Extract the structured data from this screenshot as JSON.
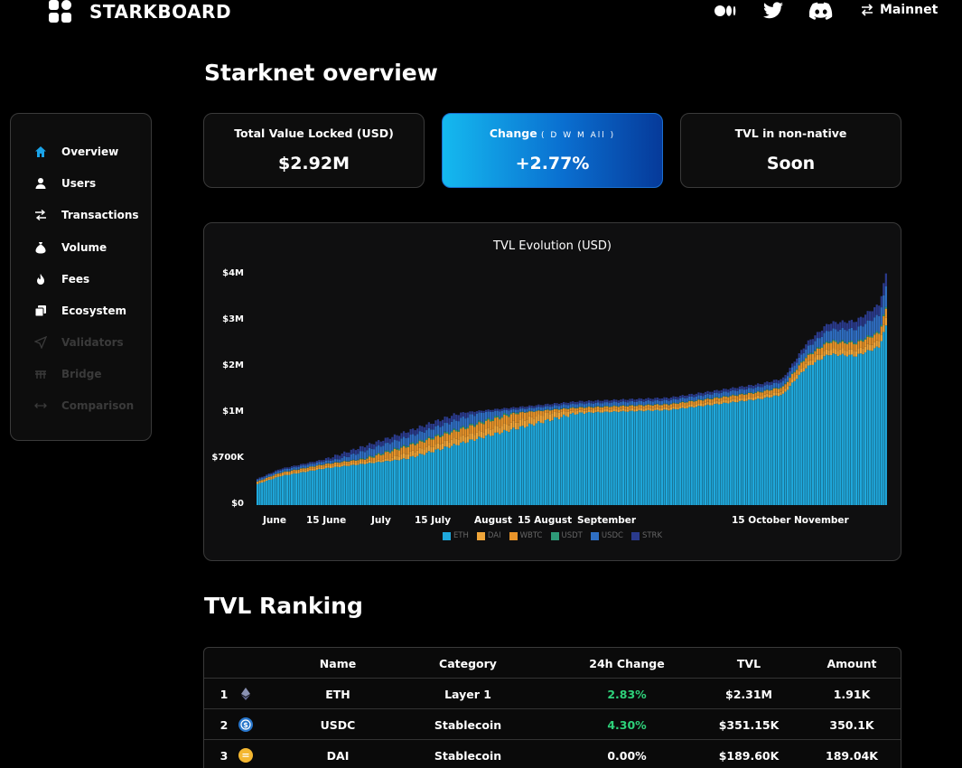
{
  "brand": "STARKBOARD",
  "network": "Mainnet",
  "icons": {
    "logo": "starkboard-logo-icon",
    "medium": "medium-icon",
    "twitter": "twitter-icon",
    "discord": "discord-icon",
    "switch": "swap-arrows-icon"
  },
  "sidebar": {
    "items": [
      {
        "label": "Overview",
        "icon": "home-icon",
        "active": true
      },
      {
        "label": "Users",
        "icon": "user-icon"
      },
      {
        "label": "Transactions",
        "icon": "swap-icon"
      },
      {
        "label": "Volume",
        "icon": "money-bag-icon"
      },
      {
        "label": "Fees",
        "icon": "fire-icon"
      },
      {
        "label": "Ecosystem",
        "icon": "layers-icon"
      },
      {
        "label": "Validators",
        "icon": "send-icon",
        "disabled": true
      },
      {
        "label": "Bridge",
        "icon": "bridge-icon",
        "disabled": true
      },
      {
        "label": "Comparison",
        "icon": "compare-icon",
        "disabled": true
      }
    ]
  },
  "page_title": "Starknet overview",
  "stats": [
    {
      "label": "Total Value Locked (USD)",
      "value": "$2.92M"
    },
    {
      "label": "Change",
      "periods": "( D W M All )",
      "value": "+2.77%"
    },
    {
      "label": "TVL in non-native",
      "value": "Soon"
    }
  ],
  "chart_data": {
    "type": "bar",
    "stacked": true,
    "title": "TVL Evolution (USD)",
    "y_ticks": [
      "$0",
      "$700K",
      "$1M",
      "$2M",
      "$3M",
      "$4M"
    ],
    "x_ticks": [
      "June",
      "15 June",
      "July",
      "15 July",
      "August",
      "15 August",
      "September",
      "15 October",
      "November"
    ],
    "ylim": [
      0,
      4000000
    ],
    "legend_placement": "bottom",
    "series": [
      {
        "name": "ETH",
        "color": "#1fa8dc"
      },
      {
        "name": "DAI",
        "color": "#f0a63a"
      },
      {
        "name": "WBTC",
        "color": "#e8942a"
      },
      {
        "name": "USDT",
        "color": "#2e9a78"
      },
      {
        "name": "USDC",
        "color": "#2f6fc4"
      },
      {
        "name": "STRK",
        "color": "#2a3a8c"
      }
    ],
    "total_keypoints": [
      [
        0,
        400000
      ],
      [
        10,
        550000
      ],
      [
        30,
        700000
      ],
      [
        60,
        850000
      ],
      [
        100,
        1060000
      ],
      [
        140,
        1250000
      ],
      [
        180,
        1330000
      ],
      [
        220,
        1630000
      ],
      [
        230,
        1750000
      ],
      [
        240,
        2500000
      ],
      [
        250,
        2950000
      ],
      [
        262,
        3000000
      ],
      [
        272,
        3350000
      ],
      [
        275,
        4000000
      ]
    ]
  },
  "ranking_title": "TVL Ranking",
  "table": {
    "headers": [
      "Name",
      "Category",
      "24h Change",
      "TVL",
      "Amount"
    ],
    "rows": [
      {
        "rank": "1",
        "icon": "eth-icon",
        "name": "ETH",
        "category": "Layer 1",
        "change": "2.83%",
        "tvl": "$2.31M",
        "amount": "1.91K",
        "positive": true
      },
      {
        "rank": "2",
        "icon": "usdc-icon",
        "name": "USDC",
        "category": "Stablecoin",
        "change": "4.30%",
        "tvl": "$351.15K",
        "amount": "350.1K",
        "positive": true
      },
      {
        "rank": "3",
        "icon": "dai-icon",
        "name": "DAI",
        "category": "Stablecoin",
        "change": "0.00%",
        "tvl": "$189.60K",
        "amount": "189.04K",
        "positive": false
      }
    ]
  }
}
